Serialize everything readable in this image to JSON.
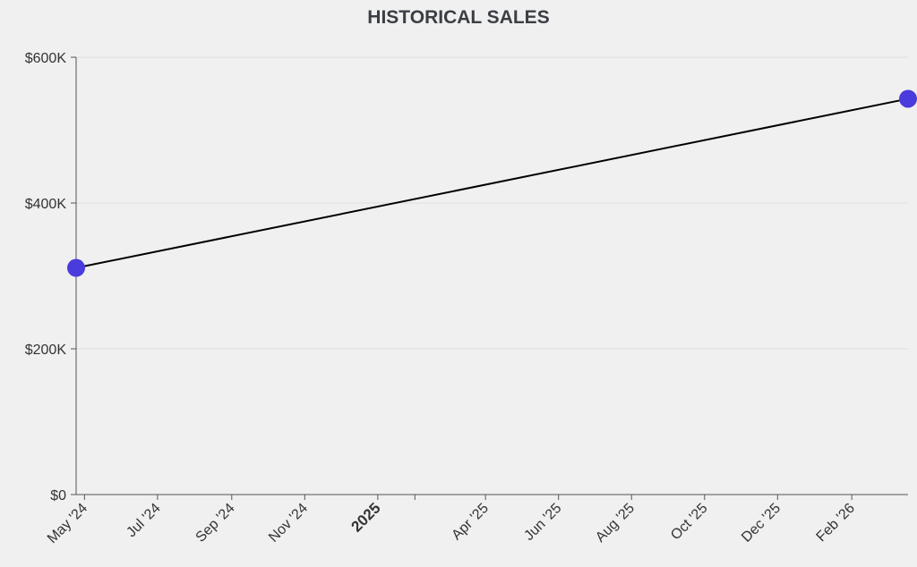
{
  "chart_data": {
    "type": "line",
    "title": "HISTORICAL SALES",
    "xlabel": "",
    "ylabel": "",
    "x_axis": {
      "kind": "date",
      "range": [
        "2024-04-24",
        "2026-03-20"
      ],
      "ticks": [
        {
          "date": "2024-05-01",
          "label": "May '24",
          "major": false
        },
        {
          "date": "2024-07-01",
          "label": "Jul '24",
          "major": false
        },
        {
          "date": "2024-09-01",
          "label": "Sep '24",
          "major": false
        },
        {
          "date": "2024-11-01",
          "label": "Nov '24",
          "major": false
        },
        {
          "date": "2025-01-01",
          "label": "2025",
          "major": true
        },
        {
          "date": "2025-02-01",
          "label": "",
          "major": false
        },
        {
          "date": "2025-04-01",
          "label": "Apr '25",
          "major": false
        },
        {
          "date": "2025-06-01",
          "label": "Jun '25",
          "major": false
        },
        {
          "date": "2025-08-01",
          "label": "Aug '25",
          "major": false
        },
        {
          "date": "2025-10-01",
          "label": "Oct '25",
          "major": false
        },
        {
          "date": "2025-12-01",
          "label": "Dec '25",
          "major": false
        },
        {
          "date": "2026-02-01",
          "label": "Feb '26",
          "major": false
        }
      ]
    },
    "y_axis": {
      "ylim": [
        0,
        600000
      ],
      "ticks": [
        {
          "value": 0,
          "label": "$0"
        },
        {
          "value": 200000,
          "label": "$200K"
        },
        {
          "value": 400000,
          "label": "$400K"
        },
        {
          "value": 600000,
          "label": "$600K"
        }
      ]
    },
    "grid": true,
    "legend": "none",
    "series": [
      {
        "points": [
          {
            "x": "2024-04-24",
            "y": 311000
          },
          {
            "x": "2026-03-20",
            "y": 543000
          }
        ],
        "line_color": "#000000",
        "marker_color": "#4a3bdc"
      }
    ]
  }
}
